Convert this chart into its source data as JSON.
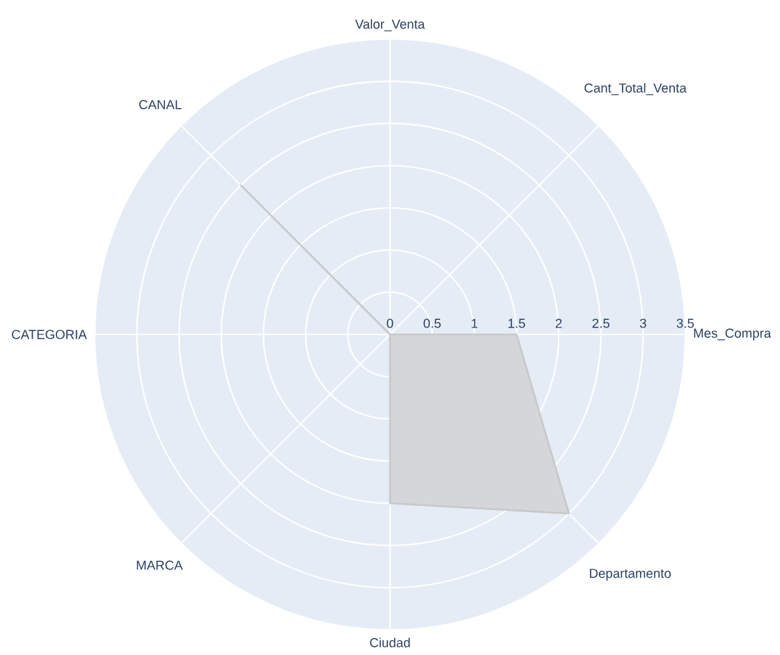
{
  "chart_data": {
    "type": "radar",
    "categories": [
      "Valor_Venta",
      "Cant_Total_Venta",
      "Mes_Compra",
      "Departamento",
      "Ciudad",
      "MARCA",
      "CATEGORIA",
      "CANAL"
    ],
    "series": [
      {
        "color": "#c8c8c8",
        "values": [
          0,
          0,
          1.5,
          3,
          2,
          0,
          0,
          2.5
        ]
      }
    ],
    "ylim": [
      0,
      3.5
    ],
    "yticks": [
      0,
      0.5,
      1,
      1.5,
      2,
      2.5,
      3,
      3.5
    ],
    "grid": true,
    "marker": "none",
    "line_style": "solid"
  }
}
